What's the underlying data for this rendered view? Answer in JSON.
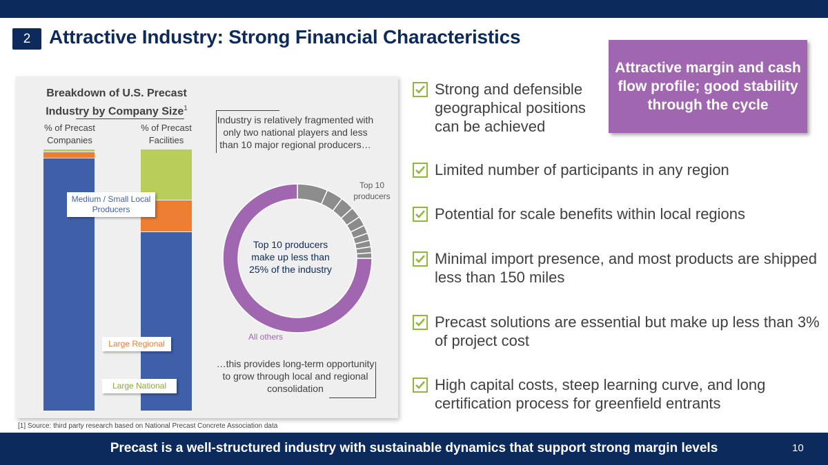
{
  "header": {
    "section_number": "2",
    "title": "Attractive Industry: Strong Financial Characteristics"
  },
  "callout": {
    "text": "Attractive margin and cash flow profile; good stability through the cycle",
    "color": "#a066b0"
  },
  "panel": {
    "heading": "Breakdown of U.S. Precast Industry by Company Size",
    "heading_footnote": "1",
    "col1_header": "% of Precast Companies",
    "col2_header": "% of Precast Facilities",
    "fragmented_note": "Industry is relatively fragmented with only two national players and less than 10 major regional producers…",
    "consolidation_note": "…this provides long-term opportunity to grow through local and regional consolidation",
    "labels": {
      "medium_small": "Medium / Small Local Producers",
      "large_regional": "Large Regional",
      "large_national": "Large National"
    }
  },
  "chart_data": [
    {
      "type": "bar",
      "title": "Breakdown of U.S. Precast Industry by Company Size",
      "stacked": true,
      "unit": "percent",
      "categories": [
        "% of Precast Companies",
        "% of Precast Facilities"
      ],
      "series": [
        {
          "name": "Medium / Small Local Producers",
          "color": "#3f5fa8",
          "values": [
            96.5,
            68.5
          ]
        },
        {
          "name": "Large Regional",
          "color": "#ed7d31",
          "values": [
            2.5,
            12
          ]
        },
        {
          "name": "Large National",
          "color": "#b8cd5a",
          "values": [
            1,
            19.5
          ]
        }
      ]
    },
    {
      "type": "pie",
      "style": "donut",
      "center_text": "Top 10 producers make up less than 25% of the industry",
      "slices": [
        {
          "label": "Top 10 producers",
          "color": "#8c8c8c",
          "values": [
            6.6,
            3.6,
            3.0,
            2.4,
            2.1,
            1.8,
            1.6,
            1.4,
            1.3,
            1.2
          ]
        },
        {
          "label": "All others",
          "color": "#a066b0",
          "value": 75.0
        }
      ]
    }
  ],
  "bullets": [
    "Strong and defensible geographical positions can be achieved",
    "Limited number of participants in any region",
    "Potential for scale benefits within local regions",
    "Minimal import presence, and most products are shipped less than 150 miles",
    "Precast solutions are essential but make up less than 3% of project cost",
    "High capital costs, steep learning curve, and long certification process for greenfield entrants"
  ],
  "footer": {
    "source": "[1] Source: third party research based on National Precast Concrete Association data",
    "tagline": "Precast is a well-structured industry with sustainable dynamics that support strong margin levels",
    "page_number": "10"
  },
  "colors": {
    "navy": "#0d2a5c",
    "check_green": "#8db83a"
  }
}
